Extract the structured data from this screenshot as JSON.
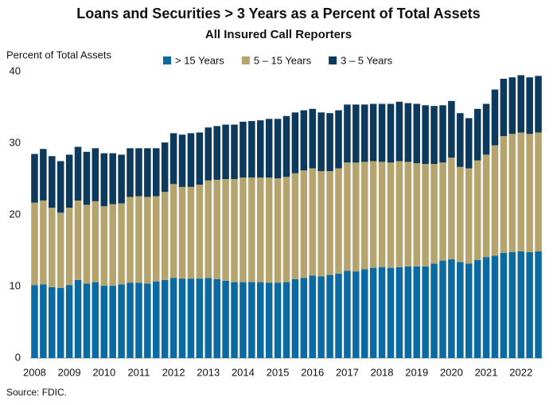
{
  "chart_data": {
    "type": "stacked_bar",
    "title": "Loans and Securities > 3 Years as a Percent of Total Assets",
    "subtitle": "All Insured Call Reporters",
    "y_label": "Percent of Total Assets",
    "source": "Source: FDIC.",
    "categories": [
      "2008",
      null,
      null,
      null,
      "2009",
      null,
      null,
      null,
      "2010",
      null,
      null,
      null,
      "2011",
      null,
      null,
      null,
      "2012",
      null,
      null,
      null,
      "2013",
      null,
      null,
      null,
      "2014",
      null,
      null,
      null,
      "2015",
      null,
      null,
      null,
      "2016",
      null,
      null,
      null,
      "2017",
      null,
      null,
      null,
      "2018",
      null,
      null,
      null,
      "2019",
      null,
      null,
      null,
      "2020",
      null,
      null,
      null,
      "2021",
      null,
      null,
      null,
      "2022",
      null,
      null
    ],
    "series": [
      {
        "name": "> 15 Years",
        "color": "#0b6aa2",
        "values": [
          10.2,
          10.3,
          9.9,
          9.8,
          10.2,
          10.9,
          10.4,
          10.6,
          10.1,
          10.1,
          10.3,
          10.5,
          10.5,
          10.4,
          10.7,
          10.9,
          11.2,
          11.1,
          11.1,
          11.1,
          11.2,
          11.0,
          10.8,
          10.6,
          10.6,
          10.6,
          10.6,
          10.5,
          10.5,
          10.6,
          11.0,
          11.2,
          11.5,
          11.4,
          11.6,
          11.8,
          12.2,
          12.1,
          12.4,
          12.6,
          12.7,
          12.6,
          12.7,
          12.8,
          12.8,
          12.8,
          13.2,
          13.6,
          13.8,
          13.4,
          13.2,
          13.7,
          14.1,
          14.3,
          14.7,
          14.8,
          14.9,
          14.8,
          14.9
        ]
      },
      {
        "name": "5 – 15 Years",
        "color": "#b5a46e",
        "values": [
          11.5,
          11.7,
          11.1,
          10.5,
          10.8,
          11.1,
          11.0,
          11.3,
          11.1,
          11.4,
          11.3,
          12.0,
          12.1,
          12.1,
          11.9,
          12.3,
          13.1,
          12.8,
          12.8,
          13.1,
          13.6,
          13.9,
          14.2,
          14.4,
          14.6,
          14.6,
          14.6,
          14.7,
          14.6,
          14.7,
          14.8,
          15.0,
          15.0,
          14.7,
          14.5,
          14.7,
          15.1,
          15.2,
          15.0,
          14.9,
          14.7,
          14.7,
          14.8,
          14.6,
          14.4,
          14.3,
          13.9,
          13.7,
          14.2,
          13.3,
          13.3,
          13.9,
          14.3,
          15.4,
          16.3,
          16.5,
          16.6,
          16.5,
          16.6
        ]
      },
      {
        "name": "3 – 5 Years",
        "color": "#0d3a5c",
        "values": [
          6.8,
          7.2,
          7.2,
          7.2,
          7.4,
          7.5,
          7.4,
          7.4,
          7.4,
          7.1,
          6.8,
          6.8,
          6.7,
          6.8,
          6.7,
          6.9,
          7.1,
          7.3,
          7.5,
          7.3,
          7.4,
          7.5,
          7.6,
          7.6,
          7.8,
          7.9,
          8.0,
          8.2,
          8.3,
          8.5,
          8.5,
          8.4,
          8.3,
          8.2,
          8.1,
          8.1,
          8.1,
          8.1,
          8.0,
          8.0,
          8.1,
          8.2,
          8.3,
          8.2,
          8.3,
          8.2,
          8.1,
          8.0,
          7.9,
          7.5,
          7.0,
          7.2,
          7.1,
          7.8,
          8.0,
          7.9,
          8.0,
          7.9,
          7.9
        ]
      }
    ],
    "ylim": [
      0,
      40
    ],
    "yticks": [
      0,
      10,
      20,
      30,
      40
    ],
    "grid": false
  }
}
